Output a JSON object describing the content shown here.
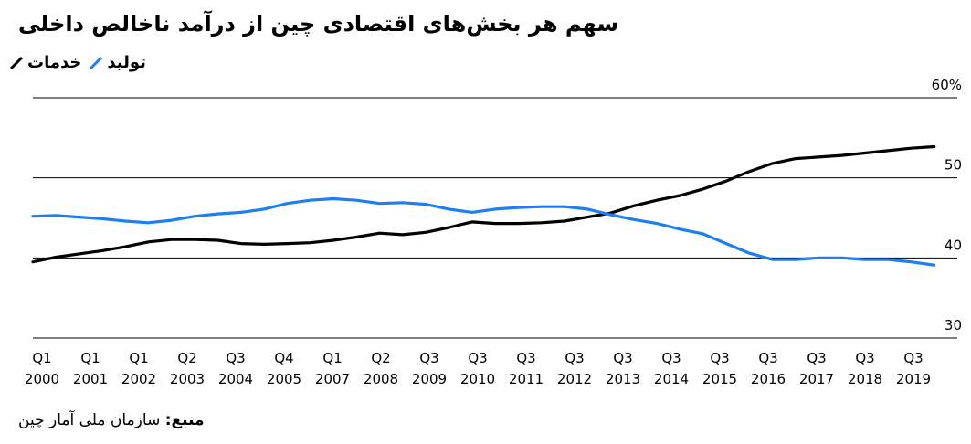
{
  "title": "سهم هر بخش‌های اقتصادی چین از درآمد ناخالص داخلی",
  "source": {
    "label": "منبع:",
    "text": "سازمان ملی آمار چین"
  },
  "chart_data": {
    "type": "line",
    "y_ticks": [
      "60%",
      "50",
      "40",
      "30"
    ],
    "ylim": [
      30,
      60
    ],
    "x_ticks": [
      {
        "q": "Q1",
        "y": "2000"
      },
      {
        "q": "Q1",
        "y": "2001"
      },
      {
        "q": "Q1",
        "y": "2002"
      },
      {
        "q": "Q2",
        "y": "2003"
      },
      {
        "q": "Q3",
        "y": "2004"
      },
      {
        "q": "Q4",
        "y": "2005"
      },
      {
        "q": "Q1",
        "y": "2007"
      },
      {
        "q": "Q2",
        "y": "2008"
      },
      {
        "q": "Q3",
        "y": "2009"
      },
      {
        "q": "Q3",
        "y": "2010"
      },
      {
        "q": "Q3",
        "y": "2011"
      },
      {
        "q": "Q3",
        "y": "2012"
      },
      {
        "q": "Q3",
        "y": "2013"
      },
      {
        "q": "Q3",
        "y": "2014"
      },
      {
        "q": "Q3",
        "y": "2015"
      },
      {
        "q": "Q3",
        "y": "2016"
      },
      {
        "q": "Q3",
        "y": "2017"
      },
      {
        "q": "Q3",
        "y": "2018"
      },
      {
        "q": "Q3",
        "y": "2019"
      }
    ],
    "series": [
      {
        "name": "خدمات",
        "color": "#000000",
        "points": [
          [
            "2000-Q1",
            39.5
          ],
          [
            "2000-Q3",
            40.1
          ],
          [
            "2001-Q1",
            40.5
          ],
          [
            "2001-Q3",
            40.9
          ],
          [
            "2002-Q1",
            41.4
          ],
          [
            "2002-Q3",
            42.0
          ],
          [
            "2003-Q1",
            42.3
          ],
          [
            "2003-Q3",
            42.3
          ],
          [
            "2004-Q1",
            42.2
          ],
          [
            "2004-Q3",
            41.8
          ],
          [
            "2005-Q1",
            41.7
          ],
          [
            "2005-Q3",
            41.8
          ],
          [
            "2006-Q1",
            41.9
          ],
          [
            "2006-Q3",
            42.2
          ],
          [
            "2007-Q1",
            42.6
          ],
          [
            "2007-Q3",
            43.1
          ],
          [
            "2008-Q1",
            42.9
          ],
          [
            "2008-Q3",
            43.2
          ],
          [
            "2009-Q1",
            43.8
          ],
          [
            "2009-Q3",
            44.5
          ],
          [
            "2010-Q1",
            44.3
          ],
          [
            "2010-Q3",
            44.3
          ],
          [
            "2011-Q1",
            44.4
          ],
          [
            "2011-Q3",
            44.6
          ],
          [
            "2012-Q1",
            45.1
          ],
          [
            "2012-Q3",
            45.6
          ],
          [
            "2013-Q1",
            46.5
          ],
          [
            "2013-Q3",
            47.2
          ],
          [
            "2014-Q1",
            47.8
          ],
          [
            "2014-Q3",
            48.6
          ],
          [
            "2015-Q1",
            49.6
          ],
          [
            "2015-Q3",
            50.8
          ],
          [
            "2016-Q1",
            51.8
          ],
          [
            "2016-Q3",
            52.4
          ],
          [
            "2017-Q1",
            52.6
          ],
          [
            "2017-Q3",
            52.8
          ],
          [
            "2018-Q1",
            53.1
          ],
          [
            "2018-Q3",
            53.4
          ],
          [
            "2019-Q1",
            53.7
          ],
          [
            "2019-Q3",
            53.9
          ]
        ]
      },
      {
        "name": "تولید",
        "color": "#1e7ff0",
        "points": [
          [
            "2000-Q1",
            45.2
          ],
          [
            "2000-Q3",
            45.3
          ],
          [
            "2001-Q1",
            45.1
          ],
          [
            "2001-Q3",
            44.9
          ],
          [
            "2002-Q1",
            44.6
          ],
          [
            "2002-Q3",
            44.4
          ],
          [
            "2003-Q1",
            44.7
          ],
          [
            "2003-Q3",
            45.2
          ],
          [
            "2004-Q1",
            45.5
          ],
          [
            "2004-Q3",
            45.7
          ],
          [
            "2005-Q1",
            46.1
          ],
          [
            "2005-Q3",
            46.8
          ],
          [
            "2006-Q1",
            47.2
          ],
          [
            "2006-Q3",
            47.4
          ],
          [
            "2007-Q1",
            47.2
          ],
          [
            "2007-Q3",
            46.8
          ],
          [
            "2008-Q1",
            46.9
          ],
          [
            "2008-Q3",
            46.7
          ],
          [
            "2009-Q1",
            46.1
          ],
          [
            "2009-Q3",
            45.7
          ],
          [
            "2010-Q1",
            46.1
          ],
          [
            "2010-Q3",
            46.3
          ],
          [
            "2011-Q1",
            46.4
          ],
          [
            "2011-Q3",
            46.4
          ],
          [
            "2012-Q1",
            46.1
          ],
          [
            "2012-Q3",
            45.4
          ],
          [
            "2013-Q1",
            44.8
          ],
          [
            "2013-Q3",
            44.3
          ],
          [
            "2014-Q1",
            43.6
          ],
          [
            "2014-Q3",
            43.0
          ],
          [
            "2015-Q1",
            41.8
          ],
          [
            "2015-Q3",
            40.6
          ],
          [
            "2016-Q1",
            39.8
          ],
          [
            "2016-Q3",
            39.8
          ],
          [
            "2017-Q1",
            40.0
          ],
          [
            "2017-Q3",
            40.0
          ],
          [
            "2018-Q1",
            39.8
          ],
          [
            "2018-Q3",
            39.8
          ],
          [
            "2019-Q1",
            39.5
          ],
          [
            "2019-Q3",
            39.1
          ]
        ]
      }
    ]
  }
}
